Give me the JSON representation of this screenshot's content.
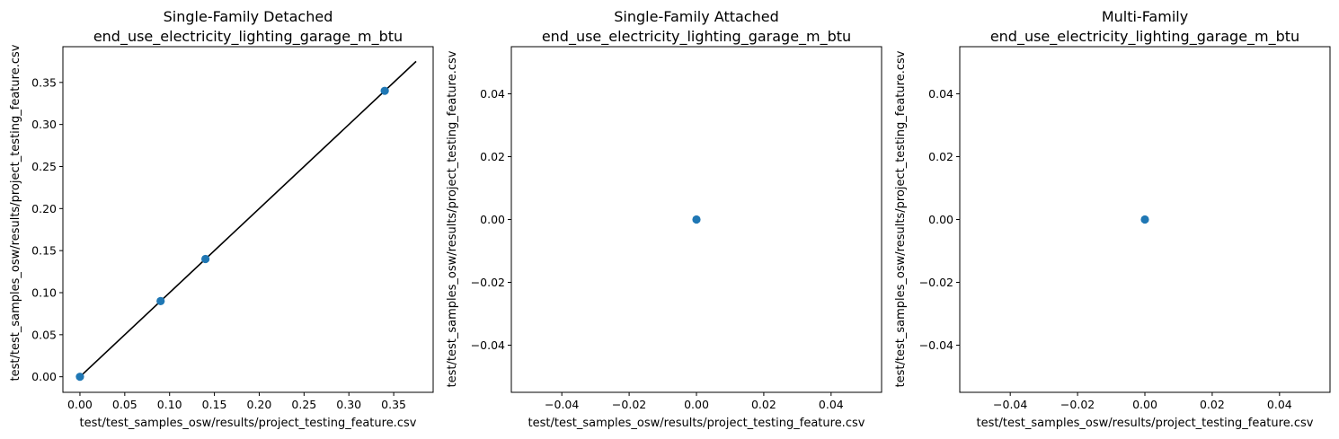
{
  "chart_data": [
    {
      "type": "scatter",
      "title": [
        "Single-Family Detached",
        "end_use_electricity_lighting_garage_m_btu"
      ],
      "xlabel": "test/test_samples_osw/results/project_testing_feature.csv",
      "ylabel": "test/test_samples_osw/results/project_testing_feature.csv",
      "xlim": [
        -0.019,
        0.394
      ],
      "ylim": [
        -0.0185,
        0.3925
      ],
      "xticks": [
        0.0,
        0.05,
        0.1,
        0.15,
        0.2,
        0.25,
        0.3,
        0.35
      ],
      "xticklabels": [
        "0.00",
        "0.05",
        "0.10",
        "0.15",
        "0.20",
        "0.25",
        "0.30",
        "0.35"
      ],
      "yticks": [
        0.0,
        0.05,
        0.1,
        0.15,
        0.2,
        0.25,
        0.3,
        0.35
      ],
      "yticklabels": [
        "0.00",
        "0.05",
        "0.10",
        "0.15",
        "0.20",
        "0.25",
        "0.30",
        "0.35"
      ],
      "points": [
        [
          0.0,
          0.0
        ],
        [
          0.09,
          0.09
        ],
        [
          0.14,
          0.14
        ],
        [
          0.34,
          0.34
        ]
      ],
      "reference_line": [
        [
          0.0,
          0.0
        ],
        [
          0.375,
          0.375
        ]
      ],
      "grid": false
    },
    {
      "type": "scatter",
      "title": [
        "Single-Family Attached",
        "end_use_electricity_lighting_garage_m_btu"
      ],
      "xlabel": "test/test_samples_osw/results/project_testing_feature.csv",
      "ylabel": "test/test_samples_osw/results/project_testing_feature.csv",
      "xlim": [
        -0.055,
        0.055
      ],
      "ylim": [
        -0.055,
        0.055
      ],
      "xticks": [
        -0.04,
        -0.02,
        0.0,
        0.02,
        0.04
      ],
      "xticklabels": [
        "−0.04",
        "−0.02",
        "0.00",
        "0.02",
        "0.04"
      ],
      "yticks": [
        -0.04,
        -0.02,
        0.0,
        0.02,
        0.04
      ],
      "yticklabels": [
        "−0.04",
        "−0.02",
        "0.00",
        "0.02",
        "0.04"
      ],
      "points": [
        [
          0.0,
          0.0
        ]
      ],
      "reference_line": [],
      "grid": false
    },
    {
      "type": "scatter",
      "title": [
        "Multi-Family",
        "end_use_electricity_lighting_garage_m_btu"
      ],
      "xlabel": "test/test_samples_osw/results/project_testing_feature.csv",
      "ylabel": "test/test_samples_osw/results/project_testing_feature.csv",
      "xlim": [
        -0.055,
        0.055
      ],
      "ylim": [
        -0.055,
        0.055
      ],
      "xticks": [
        -0.04,
        -0.02,
        0.0,
        0.02,
        0.04
      ],
      "xticklabels": [
        "−0.04",
        "−0.02",
        "0.00",
        "0.02",
        "0.04"
      ],
      "yticks": [
        -0.04,
        -0.02,
        0.0,
        0.02,
        0.04
      ],
      "yticklabels": [
        "−0.04",
        "−0.02",
        "0.00",
        "0.02",
        "0.04"
      ],
      "points": [
        [
          0.0,
          0.0
        ]
      ],
      "reference_line": [],
      "grid": false
    }
  ],
  "colors": {
    "points": "#1f77b4",
    "reference_line": "#000000",
    "axes": "#000000"
  }
}
